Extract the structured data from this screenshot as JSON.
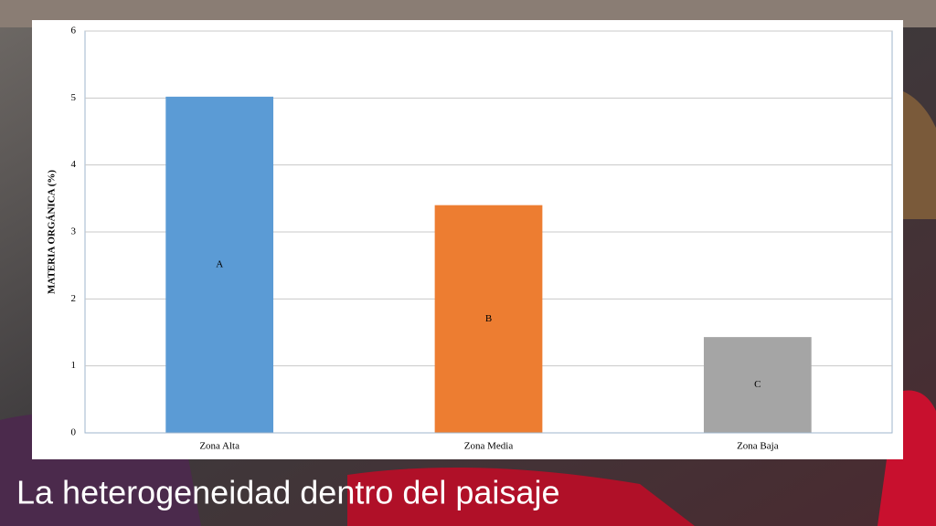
{
  "chart_data": {
    "type": "bar",
    "ylabel": "MATERIA ORGÁNICA (%)",
    "categories": [
      "Zona Alta",
      "Zona Media",
      "Zona Baja"
    ],
    "values": [
      5.02,
      3.4,
      1.43
    ],
    "colors": [
      "#5b9bd5",
      "#ed7d31",
      "#a5a5a5"
    ],
    "annotations": [
      "A",
      "B",
      "C"
    ],
    "ylim": [
      0,
      6
    ],
    "yticks": [
      0,
      1,
      2,
      3,
      4,
      5,
      6
    ],
    "grid": true
  },
  "slide": {
    "title": "La heterogeneidad dentro del paisaje"
  }
}
